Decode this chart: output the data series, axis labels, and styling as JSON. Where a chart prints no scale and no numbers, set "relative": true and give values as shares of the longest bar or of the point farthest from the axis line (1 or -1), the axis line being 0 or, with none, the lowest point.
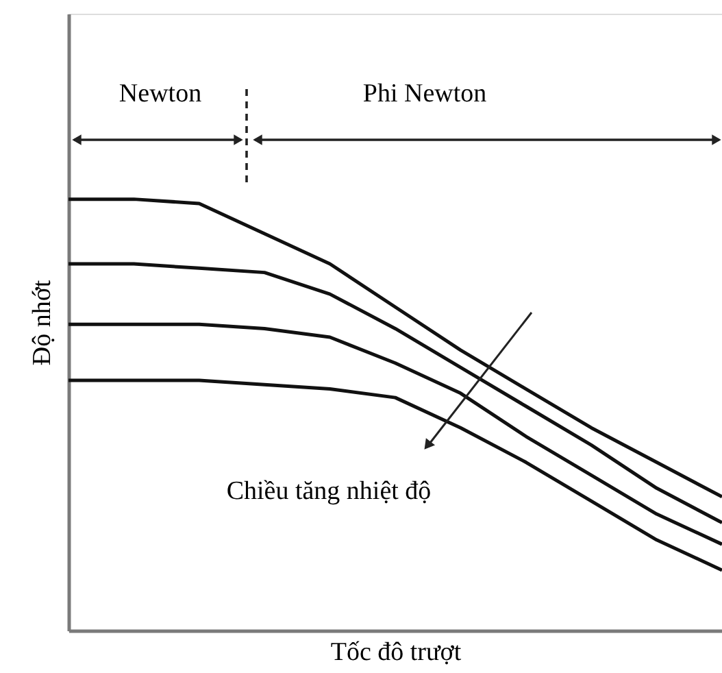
{
  "chart_data": {
    "type": "line",
    "relative": true,
    "xlabel": "Tốc đô trượt",
    "ylabel": "Độ nhớt",
    "categories": [
      null,
      null,
      null,
      null,
      null,
      null,
      null,
      null,
      null,
      null,
      null
    ],
    "series": [
      {
        "color": "#111111",
        "values": [
          1.0,
          1.0,
          0.99,
          0.92,
          0.85,
          0.75,
          0.65,
          0.56,
          0.47,
          0.39,
          0.31
        ]
      },
      {
        "color": "#111111",
        "values": [
          0.85,
          0.85,
          0.84,
          0.83,
          0.78,
          0.7,
          0.61,
          0.52,
          0.43,
          0.33,
          0.25
        ]
      },
      {
        "color": "#111111",
        "values": [
          0.71,
          0.71,
          0.71,
          0.7,
          0.68,
          0.62,
          0.55,
          0.45,
          0.36,
          0.27,
          0.2
        ]
      },
      {
        "color": "#111111",
        "values": [
          0.58,
          0.58,
          0.58,
          0.57,
          0.56,
          0.54,
          0.47,
          0.39,
          0.3,
          0.21,
          0.14
        ]
      }
    ],
    "annotations": [
      "Newton",
      "Phi Newton",
      "Chiều tăng nhiệt độ"
    ],
    "grid": false,
    "marker": "none",
    "line_style": "solid"
  }
}
